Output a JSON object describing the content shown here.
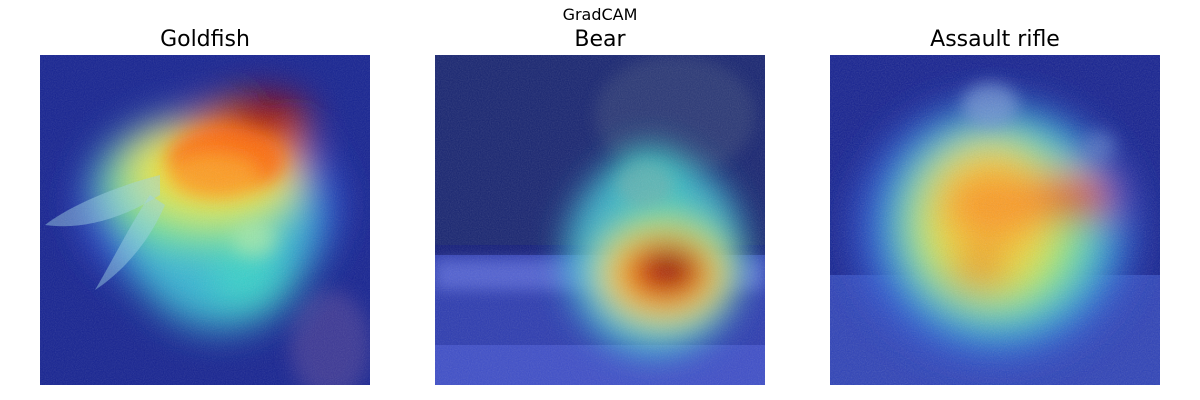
{
  "figure": {
    "suptitle": "GradCAM"
  },
  "panels": [
    {
      "title": "Goldfish",
      "content": "gradcam-overlay-goldfish"
    },
    {
      "title": "Bear",
      "content": "gradcam-overlay-bear"
    },
    {
      "title": "Assault rifle",
      "content": "gradcam-overlay-assault-rifle"
    }
  ],
  "colors": {
    "background_dark_blue": "#101a7a",
    "heat_low": "#2438c8",
    "heat_mid_cyan": "#38d8d0",
    "heat_mid_green": "#7ef07a",
    "heat_yellow": "#f4e82a",
    "heat_orange": "#ff7a10",
    "heat_high": "#c01010",
    "heat_peak": "#7a0000"
  }
}
